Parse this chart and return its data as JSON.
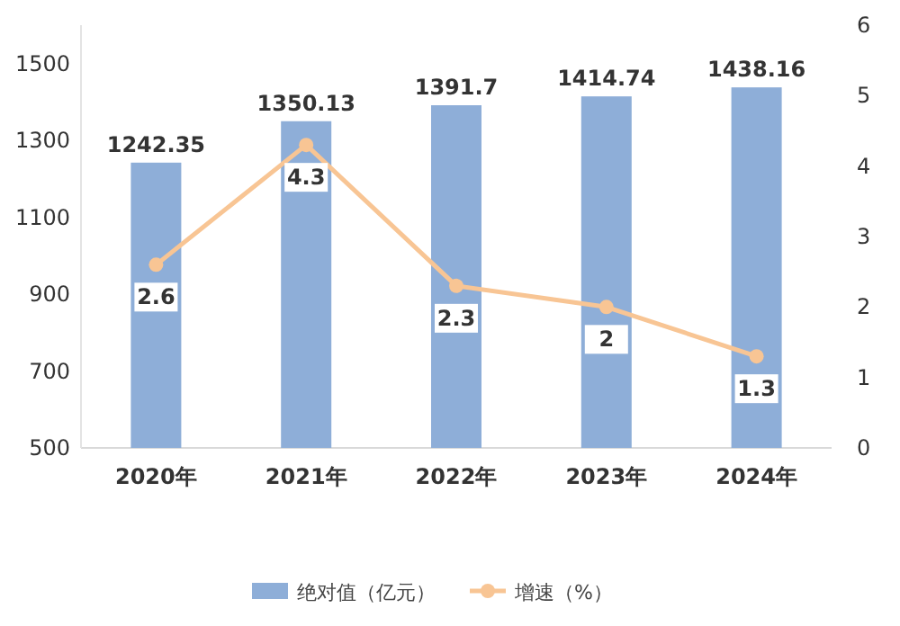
{
  "chart_data": {
    "type": "bar",
    "categories": [
      "2020年",
      "2021年",
      "2022年",
      "2023年",
      "2024年"
    ],
    "series": [
      {
        "name": "绝对值（亿元）",
        "type": "bar",
        "color": "#8eaed8",
        "values": [
          1242.35,
          1350.13,
          1391.7,
          1414.74,
          1438.16
        ]
      },
      {
        "name": "增速（%）",
        "type": "line",
        "axis": "y2",
        "color": "#f8c594",
        "values": [
          2.6,
          4.3,
          2.3,
          2,
          1.3
        ]
      }
    ],
    "ylim": [
      500,
      1600
    ],
    "yticks": [
      500,
      700,
      900,
      1100,
      1300,
      1500
    ],
    "y2lim": [
      0,
      6
    ],
    "y2ticks": [
      0,
      1,
      2,
      3,
      4,
      5,
      6
    ],
    "data_labels": true,
    "legend": "bottom",
    "marker": "circle"
  }
}
